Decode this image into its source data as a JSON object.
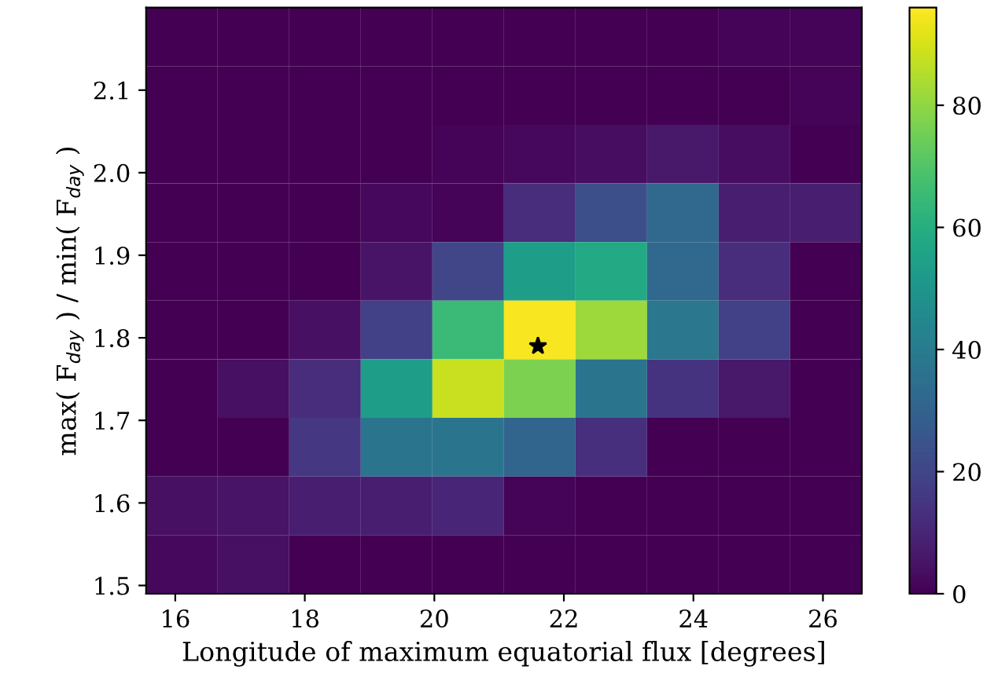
{
  "chart_data": {
    "type": "heatmap",
    "xlabel": "Longitude of maximum equatorial flux [degrees]",
    "ylabel": "max( F$_{day}$ ) / min( F$_{day}$ )",
    "xlim": [
      15.55,
      26.6
    ],
    "ylim": [
      1.49,
      2.2
    ],
    "xticks": [
      16,
      18,
      20,
      22,
      24,
      26
    ],
    "yticks": [
      1.5,
      1.6,
      1.7,
      1.8,
      1.9,
      {
        "value": 2,
        "label": "2.0"
      },
      2.1
    ],
    "clim": [
      0,
      96
    ],
    "cticks": [
      0,
      20,
      40,
      60,
      80
    ],
    "cells": [
      [
        0,
        0,
        0,
        0,
        0,
        0,
        0,
        0,
        1,
        1
      ],
      [
        0,
        0,
        0,
        0,
        0,
        0,
        0,
        0,
        0,
        1
      ],
      [
        0,
        0,
        0,
        0,
        1,
        2,
        3,
        6,
        3,
        0
      ],
      [
        0,
        0,
        0,
        2,
        1,
        12,
        23,
        32,
        8,
        8
      ],
      [
        0,
        0,
        0,
        5,
        20,
        53,
        58,
        32,
        12,
        0
      ],
      [
        0,
        0,
        4,
        18,
        65,
        95,
        82,
        38,
        18,
        0
      ],
      [
        0,
        4,
        12,
        53,
        88,
        77,
        37,
        14,
        6,
        0
      ],
      [
        0,
        0,
        15,
        37,
        37,
        31,
        13,
        0,
        0,
        0
      ],
      [
        4,
        5,
        8,
        8,
        10,
        1,
        0,
        0,
        0,
        0
      ],
      [
        2,
        4,
        0,
        0,
        0,
        0,
        0,
        0,
        0,
        0
      ]
    ],
    "series": [
      {
        "type": "scatter",
        "x": [
          21.6
        ],
        "values": [
          1.79
        ],
        "color": "#000000"
      }
    ],
    "marker": "star"
  }
}
